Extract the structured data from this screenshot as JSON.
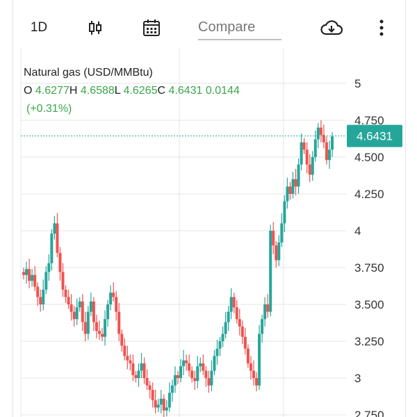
{
  "toolbar": {
    "interval": "1D",
    "compare_label": "Compare",
    "icons": [
      "candlestick-icon",
      "calendar-icon",
      "cloud-download-icon",
      "more-vert-icon"
    ]
  },
  "legend": {
    "title": "Natural gas (USD/MMBtu)",
    "open_label": "O",
    "open": "4.6277",
    "high_label": "H",
    "high": "4.6588",
    "low_label": "L",
    "low": "4.6265",
    "close_label": "C",
    "close": "4.6431",
    "change": "0.0144",
    "change_pct": "(+0.31%)"
  },
  "price_badge": "4.6431",
  "colors": {
    "up": "#26a69a",
    "down": "#ef5350",
    "accent_green": "#3aa64c",
    "grid": "#e6e6e6",
    "badge": "#26a69a"
  },
  "chart_data": {
    "type": "candlestick",
    "title": "Natural gas (USD/MMBtu)",
    "ylim": [
      2.72,
      5.6
    ],
    "y_ticks": [
      "5",
      "4.750",
      "4.500",
      "4.250",
      "4",
      "3.750",
      "3.500",
      "3.250",
      "3",
      "2.750"
    ],
    "last_price": 4.6431,
    "close_series": [
      3.7,
      3.74,
      3.66,
      3.7,
      3.62,
      3.55,
      3.5,
      3.6,
      3.72,
      3.78,
      3.98,
      4.05,
      3.85,
      3.72,
      3.6,
      3.55,
      3.5,
      3.45,
      3.4,
      3.48,
      3.52,
      3.38,
      3.3,
      3.45,
      3.52,
      3.38,
      3.32,
      3.3,
      3.28,
      3.4,
      3.5,
      3.58,
      3.55,
      3.45,
      3.3,
      3.22,
      3.15,
      3.12,
      3.1,
      3.02,
      3.0,
      3.05,
      3.1,
      3.0,
      2.95,
      2.92,
      2.85,
      2.8,
      2.82,
      2.86,
      2.78,
      2.8,
      2.9,
      2.95,
      3.02,
      3.0,
      3.08,
      3.12,
      3.1,
      3.05,
      3.0,
      2.98,
      3.08,
      3.1,
      3.05,
      3.0,
      2.95,
      3.05,
      3.15,
      3.2,
      3.25,
      3.3,
      3.38,
      3.45,
      3.55,
      3.48,
      3.4,
      3.35,
      3.28,
      3.2,
      3.1,
      3.05,
      3.0,
      2.95,
      3.3,
      3.4,
      3.5,
      3.45,
      4.0,
      3.9,
      3.8,
      3.92,
      4.05,
      4.2,
      4.3,
      4.25,
      4.35,
      4.3,
      4.45,
      4.6,
      4.55,
      4.45,
      4.38,
      4.5,
      4.62,
      4.7,
      4.65,
      4.6,
      4.48,
      4.55,
      4.64
    ]
  }
}
